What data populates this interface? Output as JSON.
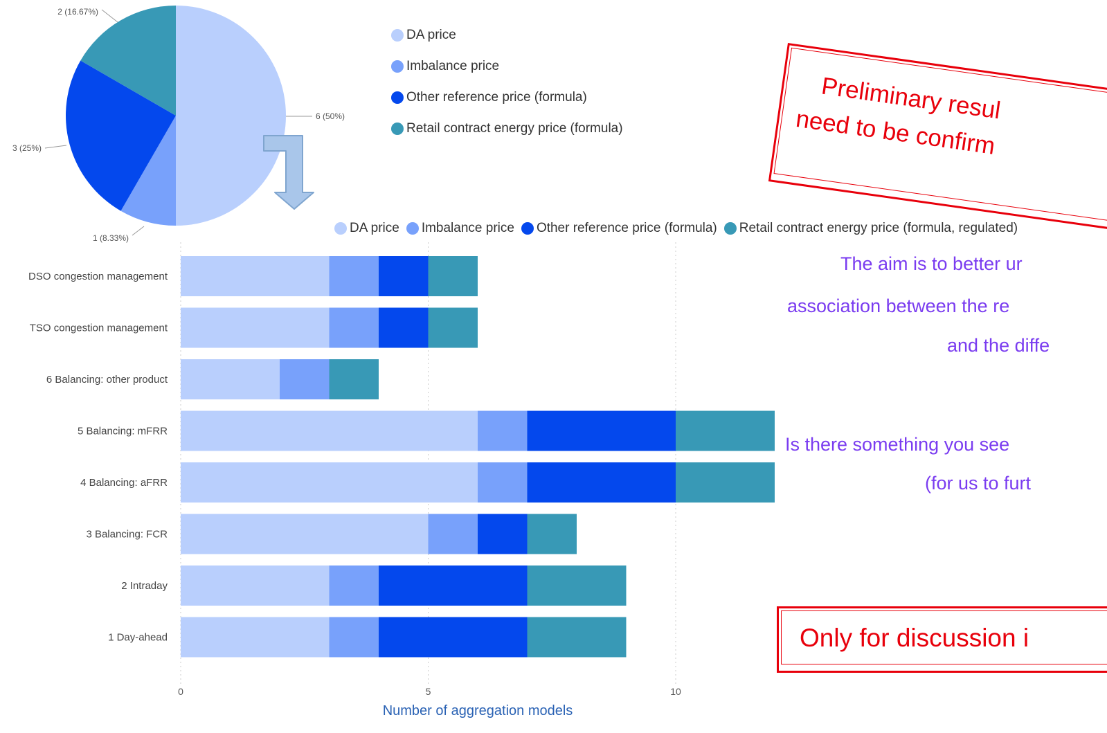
{
  "colors": {
    "da": "#b9cffd",
    "imbalance": "#78a1fb",
    "other": "#0448ed",
    "retail": "#3899b6",
    "stamp": "#e8000b",
    "note": "#7a3cf0"
  },
  "chart_data": [
    {
      "type": "pie",
      "slices": [
        {
          "name": "DA price",
          "value": 6,
          "label": "6 (50%)"
        },
        {
          "name": "Imbalance price",
          "value": 1,
          "label": "1 (8.33%)"
        },
        {
          "name": "Other reference price (formula)",
          "value": 3,
          "label": "3 (25%)"
        },
        {
          "name": "Retail contract energy price (formula)",
          "value": 2,
          "label": "2 (16.67%)"
        }
      ],
      "legend": [
        "DA price",
        "Imbalance price",
        "Other reference price (formula)",
        "Retail contract energy price (formula)"
      ],
      "legend_position": "right"
    },
    {
      "type": "bar",
      "orientation": "horizontal",
      "stacked": true,
      "categories": [
        "DSO congestion management",
        "TSO congestion management",
        "6 Balancing: other product",
        "5 Balancing: mFRR",
        "4 Balancing: aFRR",
        "3 Balancing: FCR",
        "2 Intraday",
        "1 Day-ahead"
      ],
      "series": [
        {
          "name": "DA price",
          "values": [
            3,
            3,
            2,
            6,
            6,
            5,
            3,
            3
          ]
        },
        {
          "name": "Imbalance price",
          "values": [
            1,
            1,
            1,
            1,
            1,
            1,
            1,
            1
          ]
        },
        {
          "name": "Other reference price (formula)",
          "values": [
            1,
            1,
            0,
            3,
            3,
            1,
            3,
            3
          ]
        },
        {
          "name": "Retail contract energy price (formula, regulated)",
          "values": [
            1,
            1,
            1,
            2,
            2,
            1,
            2,
            2
          ]
        }
      ],
      "xticks": [
        "0",
        "5",
        "10"
      ],
      "xlim": [
        0,
        12
      ],
      "xlabel": "Number of aggregation models",
      "grid": true,
      "legend_position": "top"
    }
  ],
  "stamps": {
    "preliminary_line1": "Preliminary resul",
    "preliminary_line2": "need to be confirm",
    "discussion": "Only for discussion i"
  },
  "notes": {
    "line1": "The aim is to better ur",
    "line2": "association between the re",
    "line3": "and the diffe",
    "line4": "Is there something you see",
    "line5": "(for us to furt"
  }
}
